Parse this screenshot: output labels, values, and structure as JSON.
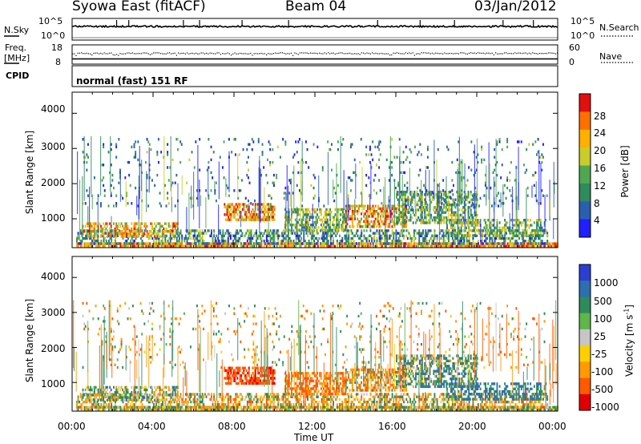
{
  "header": {
    "station": "Syowa East (fitACF)",
    "beam": "Beam 04",
    "date": "03/Jan/2012"
  },
  "nsky_panel": {
    "left_label": "N.Sky",
    "left_ticks": [
      "10^5",
      "10^0"
    ],
    "right_label": "N.Search",
    "right_ticks": [
      "10^5",
      "10^0"
    ]
  },
  "freq_panel": {
    "left_label_1": "Freq.",
    "left_label_2": "[MHz]",
    "left_ticks": [
      "18",
      "8"
    ],
    "right_label": "Nave",
    "right_ticks": [
      "60",
      "0"
    ],
    "cpid_label": "CPID"
  },
  "cpid_panel": {
    "text": "normal (fast) 151 RF"
  },
  "range_axis": {
    "label": "Slant Range [km]",
    "ticks": [
      "4000",
      "3000",
      "2000",
      "1000"
    ],
    "tick_values": [
      4000,
      3000,
      2000,
      1000
    ],
    "range": [
      180,
      4600
    ]
  },
  "time_axis": {
    "label": "Time UT",
    "ticks": [
      "00:00",
      "04:00",
      "08:00",
      "12:00",
      "16:00",
      "20:00",
      "00:00"
    ],
    "tick_hours": [
      0,
      4,
      8,
      12,
      16,
      20,
      24
    ]
  },
  "power_scale": {
    "label": "Power [dB]",
    "ticks": [
      "28",
      "24",
      "20",
      "16",
      "12",
      "8",
      "4"
    ],
    "colors": [
      "#1f1fff",
      "#2a5fb0",
      "#2f8a5c",
      "#4fa84f",
      "#c9cc2a",
      "#ffb000",
      "#ff6f00",
      "#e01010"
    ]
  },
  "velocity_scale": {
    "label": "Velocity [m s",
    "label_sup": "-1",
    "label_end": "]",
    "ticks": [
      "1000",
      "500",
      "100",
      "25",
      "-25",
      "-100",
      "-500",
      "-1000"
    ],
    "colors": [
      "#2a3fd0",
      "#2d6fb0",
      "#2f8a5c",
      "#5db74a",
      "#c6c6c6",
      "#ffd000",
      "#ff9a00",
      "#ff5a00",
      "#e00000"
    ]
  },
  "chart_data": {
    "type": "heatmap",
    "title": "Syowa East (fitACF) Beam 04 03/Jan/2012",
    "xlabel": "Time UT",
    "ylabel": "Slant Range [km]",
    "xlim_hours": [
      0,
      24
    ],
    "ylim_km": [
      180,
      4600
    ],
    "panels": [
      {
        "name": "Power [dB]",
        "clim": [
          0,
          30
        ],
        "echo_regions": [
          {
            "t": [
              0.2,
              24
            ],
            "r": [
              200,
              330
            ],
            "power": 22,
            "density": 0.85
          },
          {
            "t": [
              0.2,
              23.5
            ],
            "r": [
              330,
              700
            ],
            "power": 10,
            "density": 0.45
          },
          {
            "t": [
              0.5,
              5.2
            ],
            "r": [
              500,
              900
            ],
            "power": 20,
            "density": 0.55
          },
          {
            "t": [
              7.5,
              10.0
            ],
            "r": [
              950,
              1450
            ],
            "power": 22,
            "density": 0.7
          },
          {
            "t": [
              10.5,
              13.5
            ],
            "r": [
              700,
              1300
            ],
            "power": 14,
            "density": 0.55
          },
          {
            "t": [
              13.5,
              16.5
            ],
            "r": [
              800,
              1400
            ],
            "power": 22,
            "density": 0.6
          },
          {
            "t": [
              16.0,
              20.0
            ],
            "r": [
              900,
              1800
            ],
            "power": 12,
            "density": 0.5
          },
          {
            "t": [
              18.5,
              23.5
            ],
            "r": [
              500,
              1000
            ],
            "power": 14,
            "density": 0.45
          },
          {
            "t": [
              0.5,
              23.5
            ],
            "r": [
              1400,
              3300
            ],
            "power": 8,
            "density": 0.05
          }
        ]
      },
      {
        "name": "Velocity [m s-1]",
        "clim": [
          -1000,
          1000
        ],
        "echo_regions": [
          {
            "t": [
              0.2,
              24
            ],
            "r": [
              200,
              330
            ],
            "velocity": 0,
            "density": 0.85
          },
          {
            "t": [
              0.2,
              23.5
            ],
            "r": [
              330,
              700
            ],
            "velocity": -80,
            "density": 0.45
          },
          {
            "t": [
              0.5,
              5.2
            ],
            "r": [
              500,
              900
            ],
            "velocity": 60,
            "density": 0.55
          },
          {
            "t": [
              7.5,
              10.0
            ],
            "r": [
              950,
              1450
            ],
            "velocity": -500,
            "density": 0.7
          },
          {
            "t": [
              10.5,
              13.5
            ],
            "r": [
              700,
              1300
            ],
            "velocity": -300,
            "density": 0.55
          },
          {
            "t": [
              13.5,
              16.5
            ],
            "r": [
              800,
              1400
            ],
            "velocity": -150,
            "density": 0.6
          },
          {
            "t": [
              16.0,
              20.0
            ],
            "r": [
              900,
              1800
            ],
            "velocity": 150,
            "density": 0.5
          },
          {
            "t": [
              18.5,
              23.5
            ],
            "r": [
              500,
              1000
            ],
            "velocity": 300,
            "density": 0.45
          },
          {
            "t": [
              0.5,
              23.5
            ],
            "r": [
              1400,
              3300
            ],
            "velocity": -100,
            "density": 0.05
          }
        ]
      }
    ],
    "nsky": {
      "approx": "10^4",
      "spikes_hours": [
        2.2,
        2.8,
        5.5,
        6.3,
        8.4,
        10.7,
        15.1,
        17.2,
        18.9,
        21.3,
        22.8
      ]
    },
    "freq_mhz": 12,
    "nave": 15
  }
}
